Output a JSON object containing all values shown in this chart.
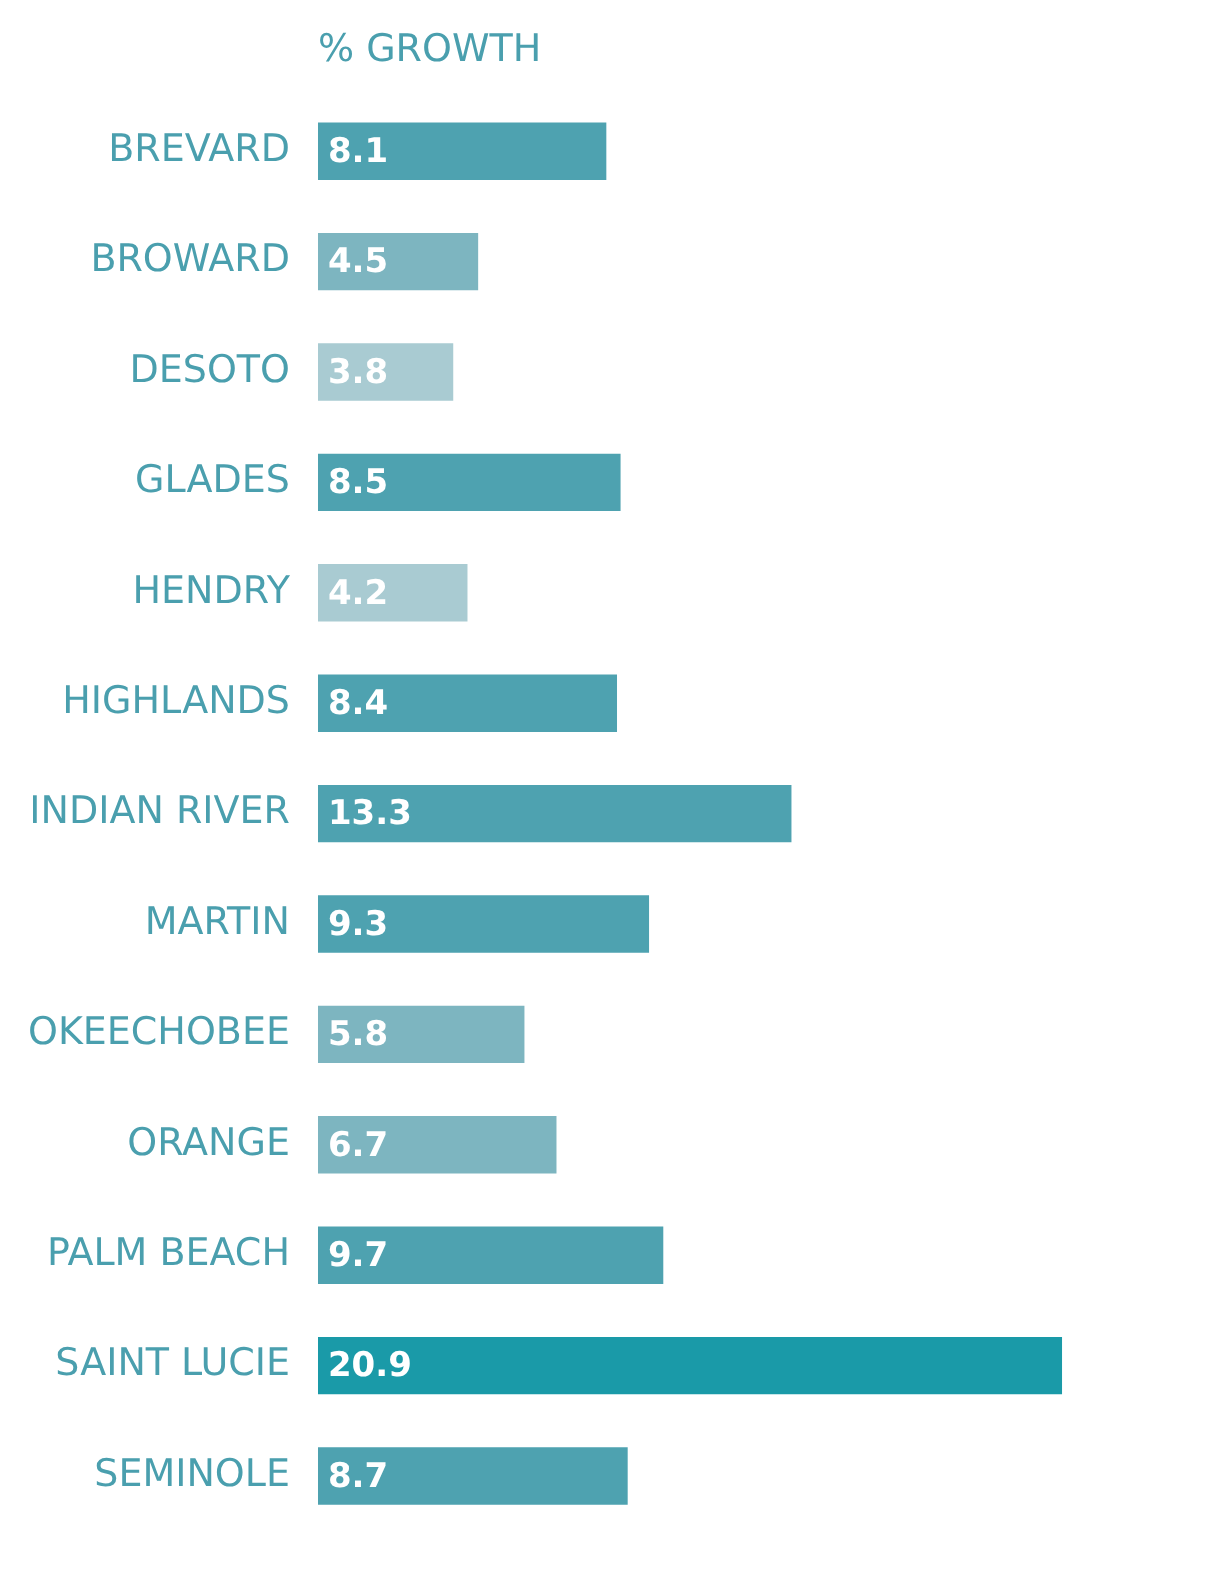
{
  "chart_data": {
    "type": "bar",
    "orientation": "horizontal",
    "title": "% GROWTH",
    "categories": [
      "BREVARD",
      "BROWARD",
      "DESOTO",
      "GLADES",
      "HENDRY",
      "HIGHLANDS",
      "INDIAN RIVER",
      "MARTIN",
      "OKEECHOBEE",
      "ORANGE",
      "PALM BEACH",
      "SAINT LUCIE",
      "SEMINOLE"
    ],
    "values": [
      8.1,
      4.5,
      3.8,
      8.5,
      4.2,
      8.4,
      13.3,
      9.3,
      5.8,
      6.7,
      9.7,
      20.9,
      8.7
    ],
    "colors": [
      "#4ea2b0",
      "#7db5c0",
      "#a9cbd2",
      "#4ea2b0",
      "#a9cbd2",
      "#4ea2b0",
      "#4ea2b0",
      "#4ea2b0",
      "#7db5c0",
      "#7db5c0",
      "#4ea2b0",
      "#1a9aa8",
      "#4ea2b0"
    ],
    "data_labels": true,
    "tick_labels": "y"
  }
}
